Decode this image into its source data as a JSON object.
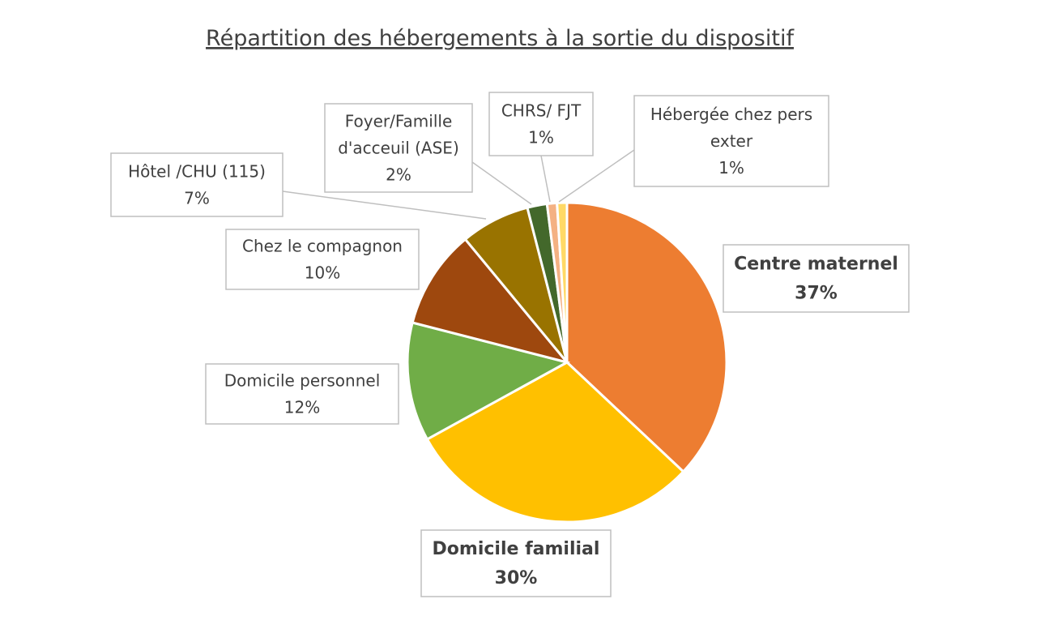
{
  "chart_data": {
    "type": "pie",
    "title": "Répartition des hébergements à la sortie du dispositif",
    "slices": [
      {
        "label_lines": [
          "Centre maternel"
        ],
        "value_label": "37%",
        "value": 37,
        "color": "#ED7D31",
        "bold": true
      },
      {
        "label_lines": [
          "Domicile familial"
        ],
        "value_label": "30%",
        "value": 30,
        "color": "#FFC000",
        "bold": true
      },
      {
        "label_lines": [
          "Domicile personnel"
        ],
        "value_label": "12%",
        "value": 12,
        "color": "#70AD47",
        "bold": false
      },
      {
        "label_lines": [
          "Chez le compagnon"
        ],
        "value_label": "10%",
        "value": 10,
        "color": "#9E480E",
        "bold": false
      },
      {
        "label_lines": [
          "Hôtel /CHU (115)"
        ],
        "value_label": "7%",
        "value": 7,
        "color": "#997300",
        "bold": false
      },
      {
        "label_lines": [
          "Foyer/Famille",
          "d'acceuil (ASE)"
        ],
        "value_label": "2%",
        "value": 2,
        "color": "#43682B",
        "bold": false
      },
      {
        "label_lines": [
          "CHRS/ FJT"
        ],
        "value_label": "1%",
        "value": 1,
        "color": "#F4B183",
        "bold": false
      },
      {
        "label_lines": [
          "Hébergée chez pers",
          "exter"
        ],
        "value_label": "1%",
        "value": 1,
        "color": "#FFD966",
        "bold": false
      }
    ]
  }
}
